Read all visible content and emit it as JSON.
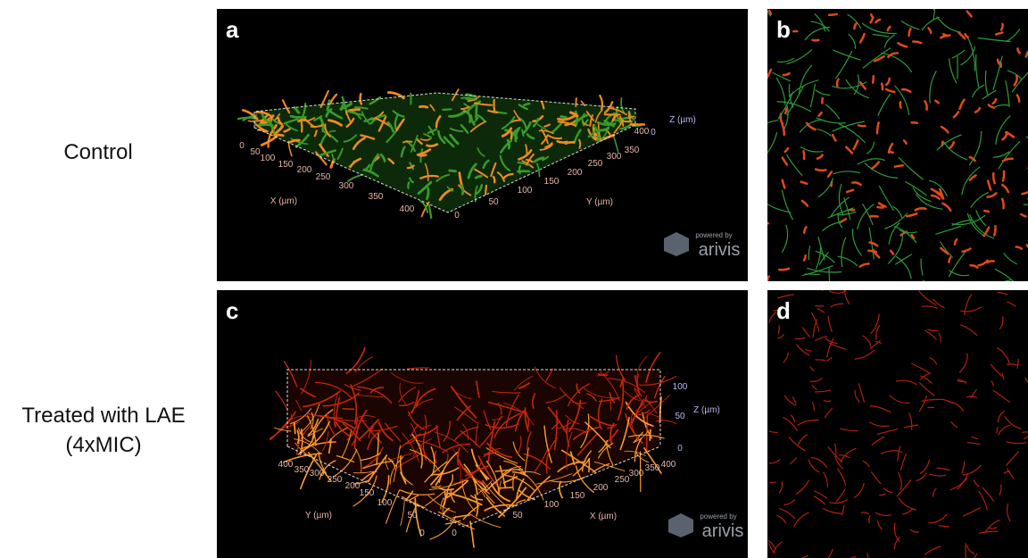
{
  "row_labels": {
    "control": "Control",
    "treated_line1": "Treated with LAE",
    "treated_line2": "(4xMIC)"
  },
  "panels": [
    {
      "letter": "a",
      "labels": [
        "0",
        "50",
        "100",
        "150",
        "200",
        "250",
        "300",
        "350",
        "400",
        "X (µm)",
        "0",
        "50",
        "100",
        "150",
        "200",
        "250",
        "300",
        "350",
        "400",
        "Y (µm)",
        "0",
        "Z (µm)",
        "powered by",
        "arivis"
      ]
    },
    {
      "letter": "b",
      "labels": []
    },
    {
      "letter": "c",
      "labels": [
        "400",
        "350",
        "300",
        "250",
        "200",
        "150",
        "100",
        "50",
        "0",
        "Y (µm)",
        "0",
        "50",
        "100",
        "150",
        "200",
        "250",
        "300",
        "350",
        "400",
        "X (µm)",
        "100",
        "50",
        "0",
        "Z (µm)",
        "powered by",
        "arivis"
      ]
    },
    {
      "letter": "d",
      "labels": []
    }
  ]
}
